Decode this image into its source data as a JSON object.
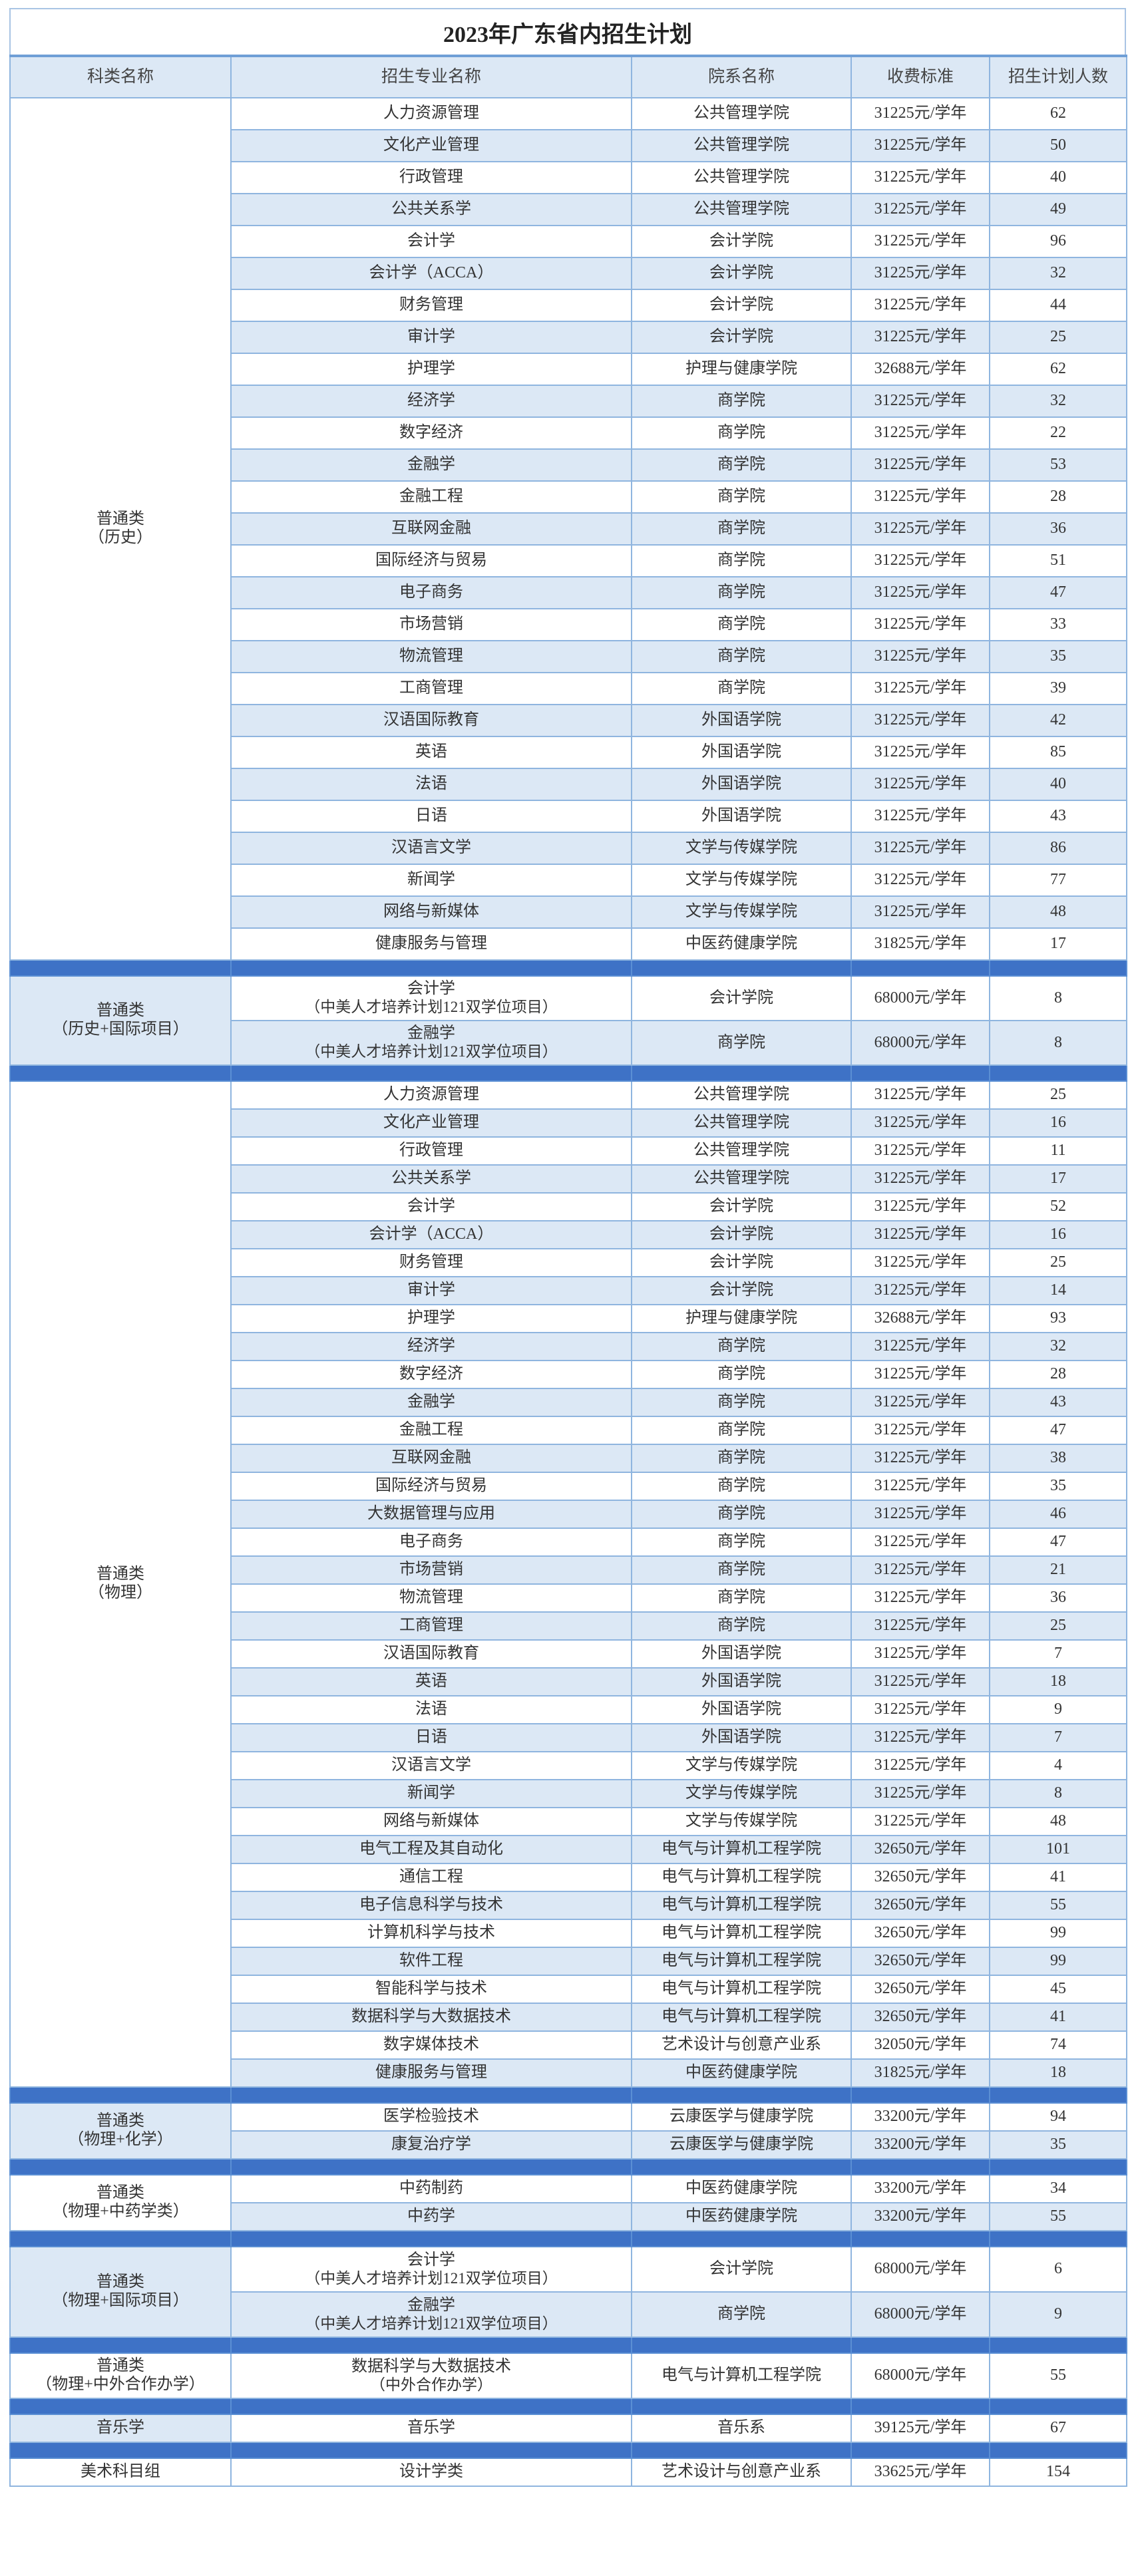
{
  "title": "2023年广东省内招生计划",
  "headers": [
    "科类名称",
    "招生专业名称",
    "院系名称",
    "收费标准",
    "招生计划人数"
  ],
  "sections": [
    {
      "category": [
        "普通类",
        "（历史）"
      ],
      "rows": [
        [
          "人力资源管理",
          "",
          "公共管理学院",
          "31225元/学年",
          "62"
        ],
        [
          "文化产业管理",
          "",
          "公共管理学院",
          "31225元/学年",
          "50"
        ],
        [
          "行政管理",
          "",
          "公共管理学院",
          "31225元/学年",
          "40"
        ],
        [
          "公共关系学",
          "",
          "公共管理学院",
          "31225元/学年",
          "49"
        ],
        [
          "会计学",
          "",
          "会计学院",
          "31225元/学年",
          "96"
        ],
        [
          "会计学（ACCA）",
          "",
          "会计学院",
          "31225元/学年",
          "32"
        ],
        [
          "财务管理",
          "",
          "会计学院",
          "31225元/学年",
          "44"
        ],
        [
          "审计学",
          "",
          "会计学院",
          "31225元/学年",
          "25"
        ],
        [
          "护理学",
          "",
          "护理与健康学院",
          "32688元/学年",
          "62"
        ],
        [
          "经济学",
          "",
          "商学院",
          "31225元/学年",
          "32"
        ],
        [
          "数字经济",
          "",
          "商学院",
          "31225元/学年",
          "22"
        ],
        [
          "金融学",
          "",
          "商学院",
          "31225元/学年",
          "53"
        ],
        [
          "金融工程",
          "",
          "商学院",
          "31225元/学年",
          "28"
        ],
        [
          "互联网金融",
          "",
          "商学院",
          "31225元/学年",
          "36"
        ],
        [
          "国际经济与贸易",
          "",
          "商学院",
          "31225元/学年",
          "51"
        ],
        [
          "电子商务",
          "",
          "商学院",
          "31225元/学年",
          "47"
        ],
        [
          "市场营销",
          "",
          "商学院",
          "31225元/学年",
          "33"
        ],
        [
          "物流管理",
          "",
          "商学院",
          "31225元/学年",
          "35"
        ],
        [
          "工商管理",
          "",
          "商学院",
          "31225元/学年",
          "39"
        ],
        [
          "汉语国际教育",
          "",
          "外国语学院",
          "31225元/学年",
          "42"
        ],
        [
          "英语",
          "",
          "外国语学院",
          "31225元/学年",
          "85"
        ],
        [
          "法语",
          "",
          "外国语学院",
          "31225元/学年",
          "40"
        ],
        [
          "日语",
          "",
          "外国语学院",
          "31225元/学年",
          "43"
        ],
        [
          "汉语言文学",
          "",
          "文学与传媒学院",
          "31225元/学年",
          "86"
        ],
        [
          "新闻学",
          "",
          "文学与传媒学院",
          "31225元/学年",
          "77"
        ],
        [
          "网络与新媒体",
          "",
          "文学与传媒学院",
          "31225元/学年",
          "48"
        ],
        [
          "健康服务与管理",
          "",
          "中医药健康学院",
          "31825元/学年",
          "17"
        ]
      ]
    },
    {
      "category": [
        "普通类",
        "（历史+国际项目）"
      ],
      "rows": [
        [
          "会计学",
          "（中美人才培养计划121双学位项目）",
          "会计学院",
          "68000元/学年",
          "8"
        ],
        [
          "金融学",
          "（中美人才培养计划121双学位项目）",
          "商学院",
          "68000元/学年",
          "8"
        ]
      ]
    },
    {
      "category": [
        "普通类",
        "（物理）"
      ],
      "rows": [
        [
          "人力资源管理",
          "",
          "公共管理学院",
          "31225元/学年",
          "25"
        ],
        [
          "文化产业管理",
          "",
          "公共管理学院",
          "31225元/学年",
          "16"
        ],
        [
          "行政管理",
          "",
          "公共管理学院",
          "31225元/学年",
          "11"
        ],
        [
          "公共关系学",
          "",
          "公共管理学院",
          "31225元/学年",
          "17"
        ],
        [
          "会计学",
          "",
          "会计学院",
          "31225元/学年",
          "52"
        ],
        [
          "会计学（ACCA）",
          "",
          "会计学院",
          "31225元/学年",
          "16"
        ],
        [
          "财务管理",
          "",
          "会计学院",
          "31225元/学年",
          "25"
        ],
        [
          "审计学",
          "",
          "会计学院",
          "31225元/学年",
          "14"
        ],
        [
          "护理学",
          "",
          "护理与健康学院",
          "32688元/学年",
          "93"
        ],
        [
          "经济学",
          "",
          "商学院",
          "31225元/学年",
          "32"
        ],
        [
          "数字经济",
          "",
          "商学院",
          "31225元/学年",
          "28"
        ],
        [
          "金融学",
          "",
          "商学院",
          "31225元/学年",
          "43"
        ],
        [
          "金融工程",
          "",
          "商学院",
          "31225元/学年",
          "47"
        ],
        [
          "互联网金融",
          "",
          "商学院",
          "31225元/学年",
          "38"
        ],
        [
          "国际经济与贸易",
          "",
          "商学院",
          "31225元/学年",
          "35"
        ],
        [
          "大数据管理与应用",
          "",
          "商学院",
          "31225元/学年",
          "46"
        ],
        [
          "电子商务",
          "",
          "商学院",
          "31225元/学年",
          "47"
        ],
        [
          "市场营销",
          "",
          "商学院",
          "31225元/学年",
          "21"
        ],
        [
          "物流管理",
          "",
          "商学院",
          "31225元/学年",
          "36"
        ],
        [
          "工商管理",
          "",
          "商学院",
          "31225元/学年",
          "25"
        ],
        [
          "汉语国际教育",
          "",
          "外国语学院",
          "31225元/学年",
          "7"
        ],
        [
          "英语",
          "",
          "外国语学院",
          "31225元/学年",
          "18"
        ],
        [
          "法语",
          "",
          "外国语学院",
          "31225元/学年",
          "9"
        ],
        [
          "日语",
          "",
          "外国语学院",
          "31225元/学年",
          "7"
        ],
        [
          "汉语言文学",
          "",
          "文学与传媒学院",
          "31225元/学年",
          "4"
        ],
        [
          "新闻学",
          "",
          "文学与传媒学院",
          "31225元/学年",
          "8"
        ],
        [
          "网络与新媒体",
          "",
          "文学与传媒学院",
          "31225元/学年",
          "48"
        ],
        [
          "电气工程及其自动化",
          "",
          "电气与计算机工程学院",
          "32650元/学年",
          "101"
        ],
        [
          "通信工程",
          "",
          "电气与计算机工程学院",
          "32650元/学年",
          "41"
        ],
        [
          "电子信息科学与技术",
          "",
          "电气与计算机工程学院",
          "32650元/学年",
          "55"
        ],
        [
          "计算机科学与技术",
          "",
          "电气与计算机工程学院",
          "32650元/学年",
          "99"
        ],
        [
          "软件工程",
          "",
          "电气与计算机工程学院",
          "32650元/学年",
          "99"
        ],
        [
          "智能科学与技术",
          "",
          "电气与计算机工程学院",
          "32650元/学年",
          "45"
        ],
        [
          "数据科学与大数据技术",
          "",
          "电气与计算机工程学院",
          "32650元/学年",
          "41"
        ],
        [
          "数字媒体技术",
          "",
          "艺术设计与创意产业系",
          "32050元/学年",
          "74"
        ],
        [
          "健康服务与管理",
          "",
          "中医药健康学院",
          "31825元/学年",
          "18"
        ]
      ]
    },
    {
      "category": [
        "普通类",
        "（物理+化学）"
      ],
      "rows": [
        [
          "医学检验技术",
          "",
          "云康医学与健康学院",
          "33200元/学年",
          "94"
        ],
        [
          "康复治疗学",
          "",
          "云康医学与健康学院",
          "33200元/学年",
          "35"
        ]
      ]
    },
    {
      "category": [
        "普通类",
        "（物理+中药学类）"
      ],
      "rows": [
        [
          "中药制药",
          "",
          "中医药健康学院",
          "33200元/学年",
          "34"
        ],
        [
          "中药学",
          "",
          "中医药健康学院",
          "33200元/学年",
          "55"
        ]
      ]
    },
    {
      "category": [
        "普通类",
        "（物理+国际项目）"
      ],
      "rows": [
        [
          "会计学",
          "（中美人才培养计划121双学位项目）",
          "会计学院",
          "68000元/学年",
          "6"
        ],
        [
          "金融学",
          "（中美人才培养计划121双学位项目）",
          "商学院",
          "68000元/学年",
          "9"
        ]
      ]
    },
    {
      "category": [
        "普通类",
        "（物理+中外合作办学）"
      ],
      "rows": [
        [
          "数据科学与大数据技术",
          "（中外合作办学）",
          "电气与计算机工程学院",
          "68000元/学年",
          "55"
        ]
      ]
    },
    {
      "category": [
        "音乐学"
      ],
      "rows": [
        [
          "音乐学",
          "",
          "音乐系",
          "39125元/学年",
          "67"
        ]
      ]
    },
    {
      "category": [
        "美术科目组"
      ],
      "rows": [
        [
          "设计学类",
          "",
          "艺术设计与创意产业系",
          "33625元/学年",
          "154"
        ]
      ]
    }
  ],
  "colors": {
    "band": "#3e72c6",
    "shade": "#dce8f5",
    "border": "#8fb5df"
  }
}
